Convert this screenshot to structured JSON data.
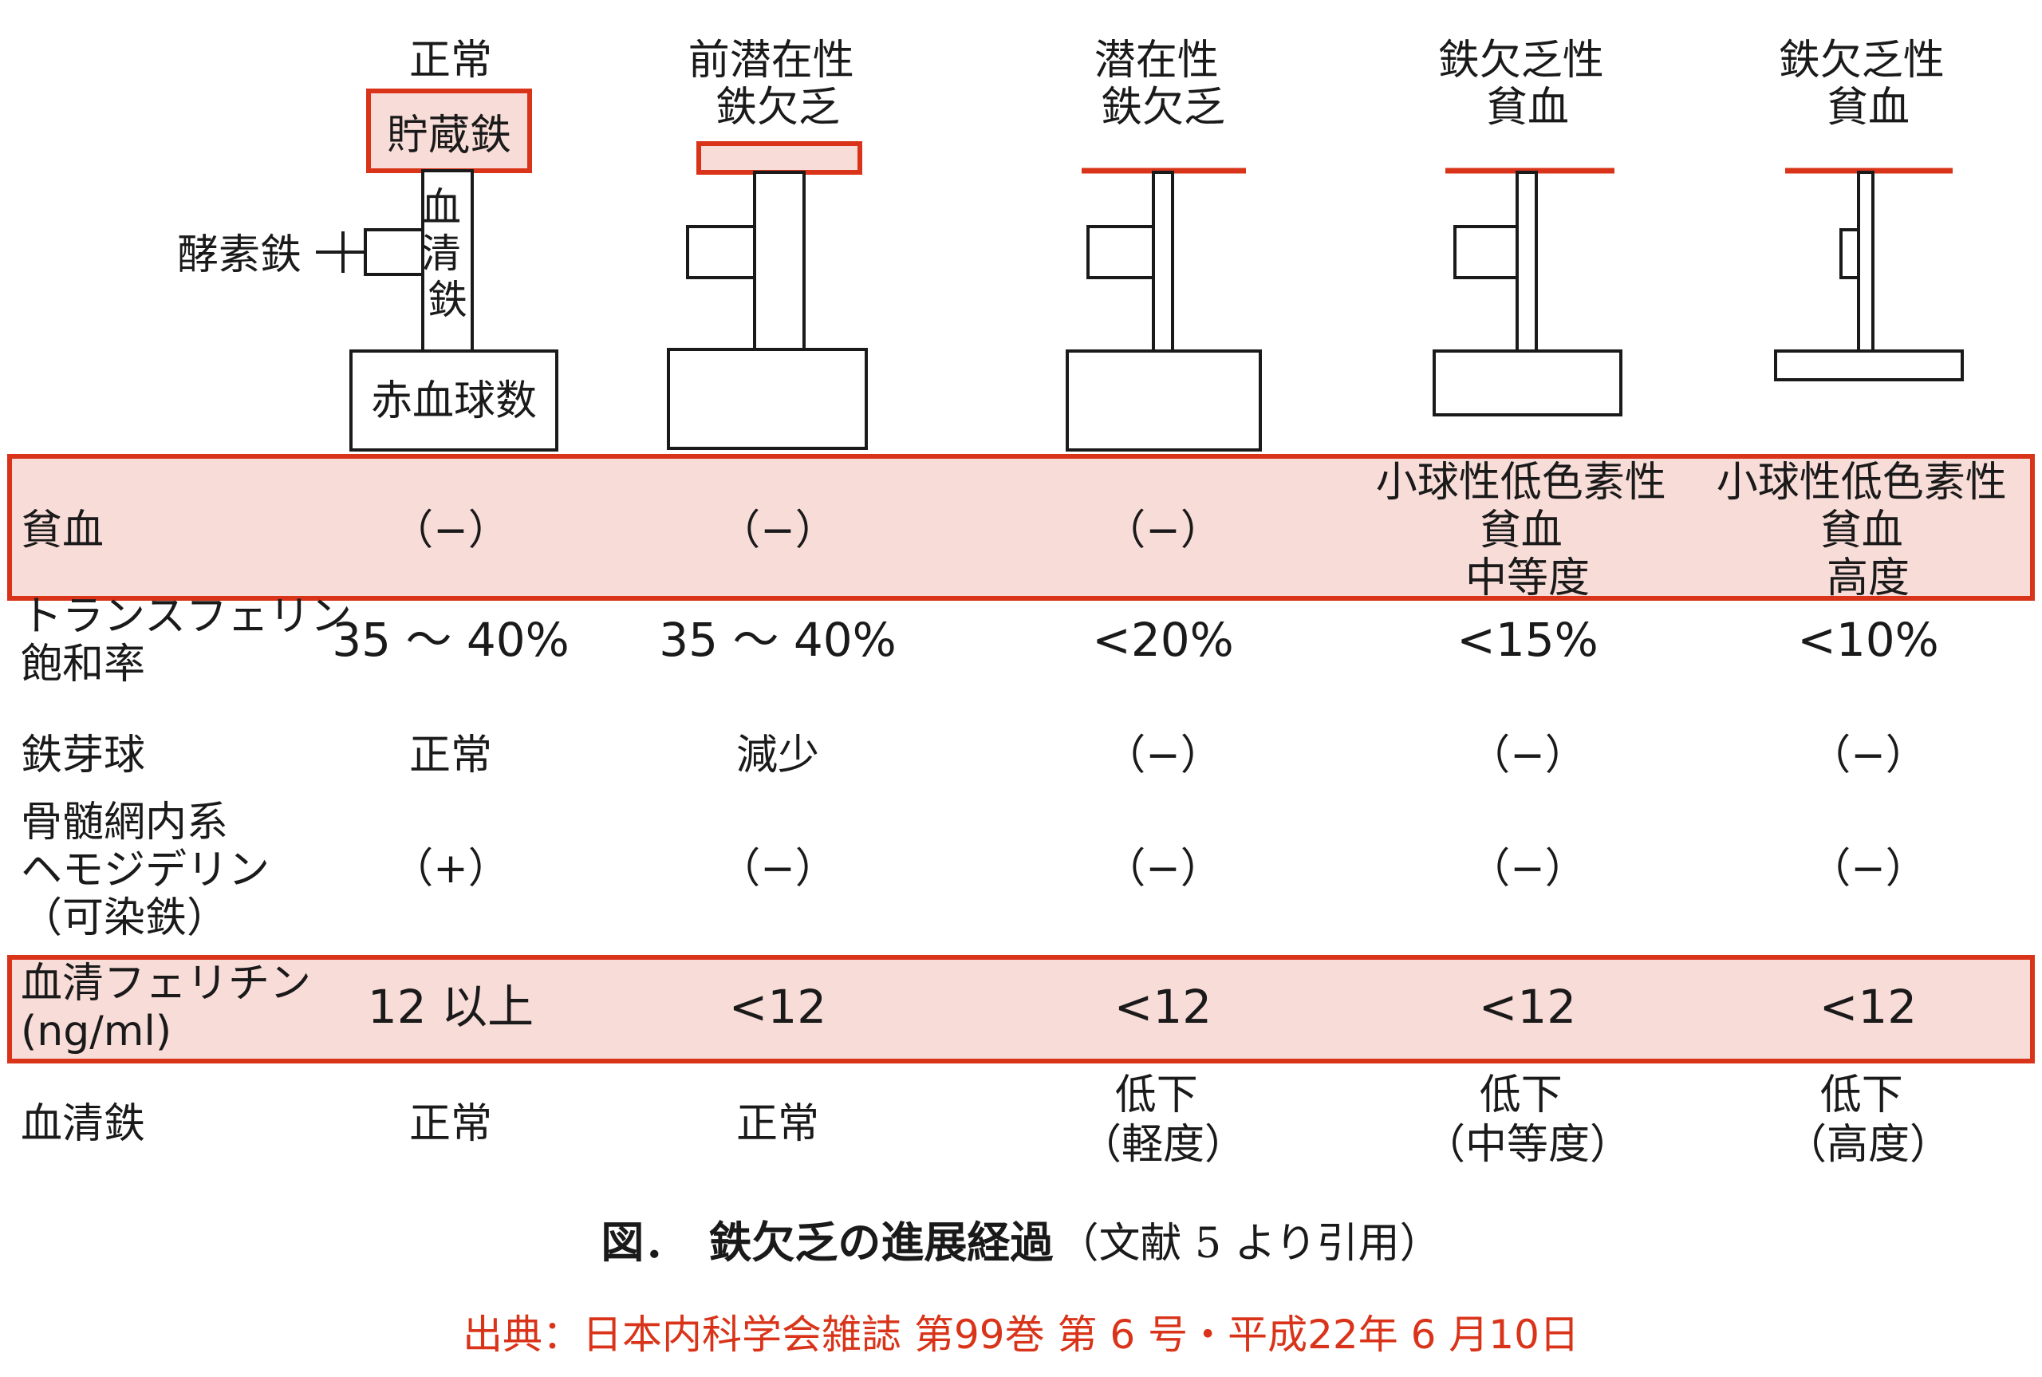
{
  "colors": {
    "accent_red": "#d9341a",
    "highlight_fill": "#f8dcd8",
    "text": "#1a1a1a",
    "struct_stroke": "#1a1a1a"
  },
  "stage_headers": [
    [
      "正常"
    ],
    [
      "前潜在性",
      "鉄欠乏"
    ],
    [
      "潜在性",
      "鉄欠乏"
    ],
    [
      "鉄欠乏性",
      "貧血"
    ],
    [
      "鉄欠乏性",
      "貧血"
    ]
  ],
  "diagram_labels": {
    "storage_iron": "貯蔵鉄",
    "enzyme_iron": "酵素鉄",
    "serum_iron_chars": [
      "血",
      "清",
      "鉄"
    ],
    "rbc_count": "赤血球数"
  },
  "row_labels": {
    "anemia": [
      "貧血"
    ],
    "transferrin": [
      "トランスフェリン",
      "飽和率"
    ],
    "sideroblast": [
      "鉄芽球"
    ],
    "hemosiderin": [
      "骨髄網内系",
      "ヘモジデリン",
      "（可染鉄）"
    ],
    "ferritin": [
      "血清フェリチン",
      "(ng/ml)"
    ],
    "serum_iron": [
      "血清鉄"
    ]
  },
  "rows": {
    "anemia": [
      [
        "（−）"
      ],
      [
        "（−）"
      ],
      [
        "（−）"
      ],
      [
        "小球性低色素性",
        "貧血",
        "中等度"
      ],
      [
        "小球性低色素性",
        "貧血",
        "高度"
      ]
    ],
    "transferrin": [
      "35 ～ 40%",
      "35 ～ 40%",
      "<20%",
      "<15%",
      "<10%"
    ],
    "sideroblast": [
      "正常",
      "減少",
      "（−）",
      "（−）",
      "（−）"
    ],
    "hemosiderin": [
      "（+）",
      "（−）",
      "（−）",
      "（−）",
      "（−）"
    ],
    "ferritin": [
      "12 以上",
      "<12",
      "<12",
      "<12",
      "<12"
    ],
    "serum_iron": [
      [
        "正常"
      ],
      [
        "正常"
      ],
      [
        "低下",
        "（軽度）"
      ],
      [
        "低下",
        "（中等度）"
      ],
      [
        "低下",
        "（高度）"
      ]
    ]
  },
  "caption": {
    "prefix": "図．　鉄欠乏の進展経過",
    "suffix": "（文献 5 より引用）"
  },
  "source": "出典：日本内科学会雑誌 第99巻 第 6 号・平成22年 6 月10日"
}
